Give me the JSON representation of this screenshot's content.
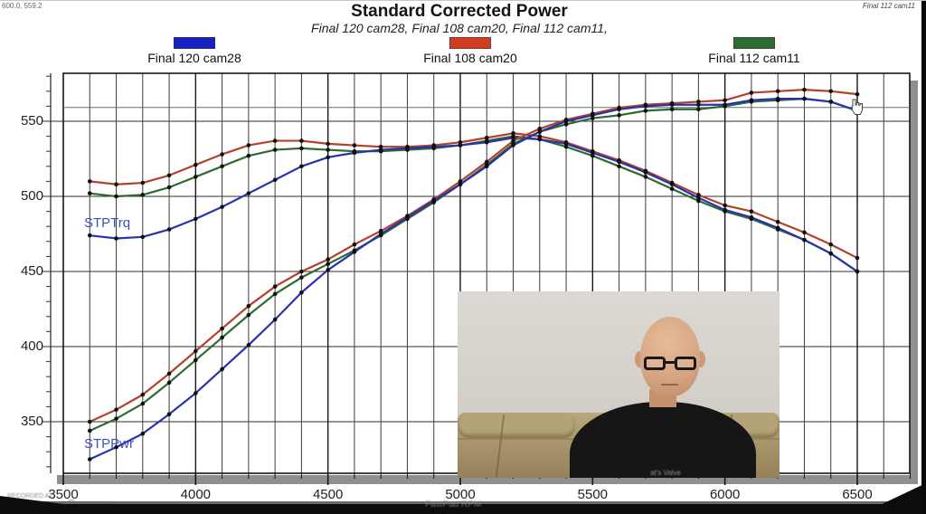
{
  "page": {
    "top_left_readout": "600.0, 559.2",
    "top_right_note": "Final 112 cam11"
  },
  "header": {
    "title": "Standard Corrected Power",
    "subtitle": "Final 120 cam28, Final 108 cam20, Final 112 cam11,"
  },
  "legend": [
    {
      "label": "Final 120 cam28",
      "color": "#1820c0"
    },
    {
      "label": "Final 108 cam20",
      "color": "#d03d20"
    },
    {
      "label": "Final 112 cam11",
      "color": "#2e6b30"
    }
  ],
  "curve_labels": {
    "torque": "STPTrq",
    "power": "STPPwr"
  },
  "watermark": {
    "line1": "RECORDED AT"
  },
  "footer": {
    "axis_hint": "FastPad RPM"
  },
  "webcam": {
    "shirt_text": "at's Valve"
  },
  "chart_data": {
    "type": "line",
    "title": "Standard Corrected Power",
    "subtitle": "Final 120 cam28, Final 108 cam20, Final 112 cam11,",
    "xlabel": "",
    "ylabel": "",
    "x_ticks": [
      3500,
      4000,
      4500,
      5000,
      5500,
      6000,
      6500
    ],
    "y_ticks": [
      350,
      400,
      450,
      500,
      550
    ],
    "x_range": [
      3500,
      6700
    ],
    "y_range": [
      316,
      582
    ],
    "minor_x_step": 100,
    "minor_y_step": 10,
    "grid": "on",
    "legend_position": "top",
    "cursor": {
      "readout": "600.0, 559.2",
      "crosshair_value": 559.2
    },
    "rpm": [
      3600,
      3700,
      3800,
      3900,
      4000,
      4100,
      4200,
      4300,
      4400,
      4500,
      4600,
      4700,
      4800,
      4900,
      5000,
      5100,
      5200,
      5300,
      5400,
      5500,
      5600,
      5700,
      5800,
      5900,
      6000,
      6100,
      6200,
      6300,
      6400,
      6500
    ],
    "series": [
      {
        "id": "trq-108",
        "label": "Final 108 cam20",
        "quantity": "STPTrq",
        "color": "#b4402c",
        "values": [
          510,
          508,
          509,
          514,
          521,
          528,
          534,
          537,
          537,
          535,
          534,
          533,
          533,
          534,
          536,
          539,
          542,
          540,
          536,
          530,
          524,
          517,
          509,
          501,
          494,
          490,
          483,
          476,
          468,
          459
        ]
      },
      {
        "id": "trq-112",
        "label": "Final 112 cam11",
        "quantity": "STPTrq",
        "color": "#2e6b30",
        "values": [
          502,
          500,
          501,
          506,
          513,
          520,
          527,
          531,
          532,
          531,
          530,
          530,
          531,
          532,
          534,
          537,
          540,
          538,
          533,
          527,
          520,
          513,
          505,
          497,
          490,
          485,
          478,
          471,
          462,
          450
        ]
      },
      {
        "id": "trq-120",
        "label": "Final 120 cam28",
        "quantity": "STPTrq",
        "color": "#2733ad",
        "values": [
          474,
          472,
          473,
          478,
          485,
          493,
          502,
          511,
          520,
          526,
          529,
          531,
          532,
          533,
          534,
          536,
          539,
          538,
          535,
          529,
          523,
          516,
          508,
          499,
          491,
          486,
          479,
          471,
          462,
          450
        ]
      },
      {
        "id": "pwr-108",
        "label": "Final 108 cam20",
        "quantity": "STPPwr",
        "color": "#b4402c",
        "values": [
          350,
          358,
          368,
          382,
          397,
          412,
          427,
          440,
          450,
          458,
          468,
          477,
          487,
          498,
          510,
          523,
          537,
          545,
          551,
          555,
          559,
          561,
          562,
          563,
          564,
          569,
          570,
          571,
          570,
          568
        ]
      },
      {
        "id": "pwr-112",
        "label": "Final 112 cam11",
        "quantity": "STPPwr",
        "color": "#2e6b30",
        "values": [
          344,
          352,
          362,
          376,
          391,
          406,
          421,
          435,
          446,
          455,
          464,
          474,
          485,
          496,
          508,
          521,
          535,
          543,
          548,
          552,
          554,
          557,
          558,
          558,
          560,
          563,
          564,
          565,
          563,
          557
        ]
      },
      {
        "id": "pwr-120",
        "label": "Final 120 cam28",
        "quantity": "STPPwr",
        "color": "#2733ad",
        "values": [
          325,
          333,
          342,
          355,
          369,
          385,
          401,
          418,
          436,
          451,
          463,
          475,
          486,
          497,
          508,
          520,
          534,
          543,
          550,
          554,
          558,
          560,
          561,
          561,
          561,
          564,
          565,
          565,
          563,
          557
        ]
      }
    ]
  }
}
